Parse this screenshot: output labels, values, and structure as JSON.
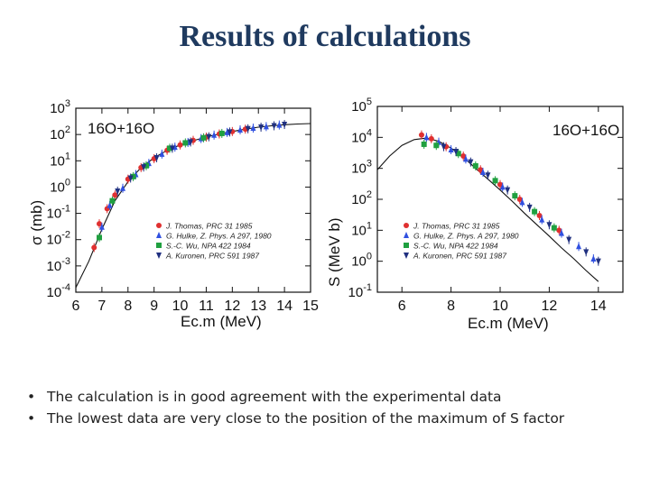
{
  "slide": {
    "title": "Results of calculations",
    "bullets": [
      "The calculation is in good agreement with the experimental data",
      "The lowest data are very close to the position of the maximum of S factor"
    ]
  },
  "chart_data": [
    {
      "type": "scatter",
      "reaction": "16O+16O",
      "xlabel": "Ec.m (MeV)",
      "ylabel": "σ (mb)",
      "xlim": [
        6,
        15
      ],
      "ylim_log10": [
        -4,
        3
      ],
      "yscale": "log",
      "x_ticks": [
        "6",
        "7",
        "8",
        "9",
        "10",
        "11",
        "12",
        "13",
        "14",
        "15"
      ],
      "y_ticks": [
        "10-4",
        "10-3",
        "10-2",
        "10-1",
        "100",
        "101",
        "102",
        "103"
      ],
      "legend": [
        "J. Thomas, PRC 31 1985",
        "G. Hulke, Z. Phys. A 297, 1980",
        "S.-C. Wu, NPA 422 1984",
        "A. Kuronen, PRC 591 1987"
      ],
      "legend_position": "lower-right",
      "series": [
        {
          "name": "J. Thomas, PRC 31 1985",
          "color": "#e03030",
          "marker": "circle",
          "x": [
            6.7,
            6.9,
            7.2,
            7.5,
            8.0,
            8.5,
            9.0,
            9.5,
            10.0,
            10.5,
            11.0,
            11.5,
            12.0,
            12.5
          ],
          "y": [
            0.005,
            0.04,
            0.15,
            0.5,
            2.0,
            5.5,
            12,
            25,
            40,
            60,
            80,
            105,
            130,
            160
          ]
        },
        {
          "name": "G. Hulke, Z. Phys. A 297, 1980",
          "color": "#3050e0",
          "marker": "triangle",
          "x": [
            7.0,
            7.3,
            7.8,
            8.3,
            8.8,
            9.3,
            9.8,
            10.3,
            10.8,
            11.3,
            11.8,
            12.3,
            12.8,
            13.3,
            13.8
          ],
          "y": [
            0.03,
            0.2,
            0.9,
            3.0,
            8,
            18,
            33,
            50,
            70,
            95,
            120,
            150,
            175,
            200,
            230
          ]
        },
        {
          "name": "S.-C. Wu, NPA 422 1984",
          "color": "#20a040",
          "marker": "square",
          "x": [
            6.9,
            7.4,
            8.2,
            8.7,
            9.6,
            10.2,
            10.9,
            11.6
          ],
          "y": [
            0.012,
            0.3,
            2.5,
            6.5,
            30,
            48,
            75,
            110
          ]
        },
        {
          "name": "A. Kuronen, PRC 591 1987",
          "color": "#203080",
          "marker": "triangle-down",
          "x": [
            7.6,
            8.1,
            8.6,
            9.1,
            9.7,
            10.4,
            11.1,
            11.9,
            12.6,
            13.1,
            13.6,
            14.0
          ],
          "y": [
            0.7,
            2.2,
            5.8,
            13,
            30,
            52,
            82,
            125,
            165,
            190,
            215,
            240
          ]
        }
      ],
      "curve": {
        "x": [
          6.0,
          6.5,
          7.0,
          7.5,
          8.0,
          8.5,
          9.0,
          9.5,
          10.0,
          10.5,
          11.0,
          11.5,
          12.0,
          12.5,
          13.0,
          13.5,
          14.0,
          14.5,
          15.0
        ],
        "y": [
          0.00015,
          0.0015,
          0.025,
          0.3,
          1.6,
          5.5,
          13,
          25,
          40,
          58,
          80,
          105,
          130,
          160,
          190,
          215,
          235,
          250,
          260
        ]
      }
    },
    {
      "type": "scatter",
      "reaction": "16O+16O",
      "xlabel": "Ec.m (MeV)",
      "ylabel": "S (MeV b)",
      "xlim": [
        5,
        15
      ],
      "ylim_log10": [
        -1,
        5
      ],
      "yscale": "log",
      "x_ticks": [
        "6",
        "8",
        "10",
        "12",
        "14"
      ],
      "y_ticks": [
        "10-1",
        "100",
        "101",
        "102",
        "103",
        "104",
        "105"
      ],
      "legend": [
        "J. Thomas, PRC 31 1985",
        "G. Hulke, Z. Phys. A 297, 1980",
        "S.-C. Wu, NPA 422 1984",
        "A. Kuronen, PRC 591 1987"
      ],
      "legend_position": "lower-left",
      "series": [
        {
          "name": "J. Thomas, PRC 31 1985",
          "color": "#e03030",
          "marker": "circle",
          "x": [
            6.8,
            7.2,
            7.8,
            8.5,
            9.2,
            10.0,
            10.8,
            11.6,
            12.4
          ],
          "y": [
            12000,
            9000,
            5000,
            2500,
            900,
            300,
            100,
            30,
            10
          ]
        },
        {
          "name": "G. Hulke, Z. Phys. A 297, 1980",
          "color": "#3050e0",
          "marker": "triangle",
          "x": [
            7.0,
            7.5,
            8.0,
            8.6,
            9.3,
            10.1,
            10.9,
            11.7,
            12.5,
            13.2,
            13.8
          ],
          "y": [
            10000,
            7000,
            4000,
            2000,
            750,
            250,
            80,
            22,
            8,
            3,
            1.2
          ]
        },
        {
          "name": "S.-C. Wu, NPA 422 1984",
          "color": "#20a040",
          "marker": "square",
          "x": [
            6.9,
            7.4,
            8.3,
            9.0,
            9.8,
            10.6,
            11.4,
            12.2
          ],
          "y": [
            6000,
            5500,
            3000,
            1200,
            400,
            130,
            40,
            12
          ]
        },
        {
          "name": "A. Kuronen, PRC 591 1987",
          "color": "#203080",
          "marker": "triangle-down",
          "x": [
            7.7,
            8.2,
            8.8,
            9.5,
            10.3,
            11.2,
            12.0,
            12.8,
            13.5,
            14.0
          ],
          "y": [
            5000,
            3500,
            1600,
            600,
            200,
            55,
            15,
            5,
            2,
            1
          ]
        }
      ],
      "curve": {
        "x": [
          5.0,
          5.5,
          6.0,
          6.5,
          7.0,
          7.5,
          8.0,
          8.5,
          9.0,
          9.5,
          10.0,
          10.5,
          11.0,
          11.5,
          12.0,
          12.5,
          13.0,
          13.5,
          14.0
        ],
        "y": [
          900,
          2500,
          5500,
          8500,
          9500,
          7500,
          4500,
          2300,
          1000,
          450,
          200,
          85,
          35,
          15,
          6.5,
          2.7,
          1.2,
          0.5,
          0.22
        ]
      }
    }
  ]
}
